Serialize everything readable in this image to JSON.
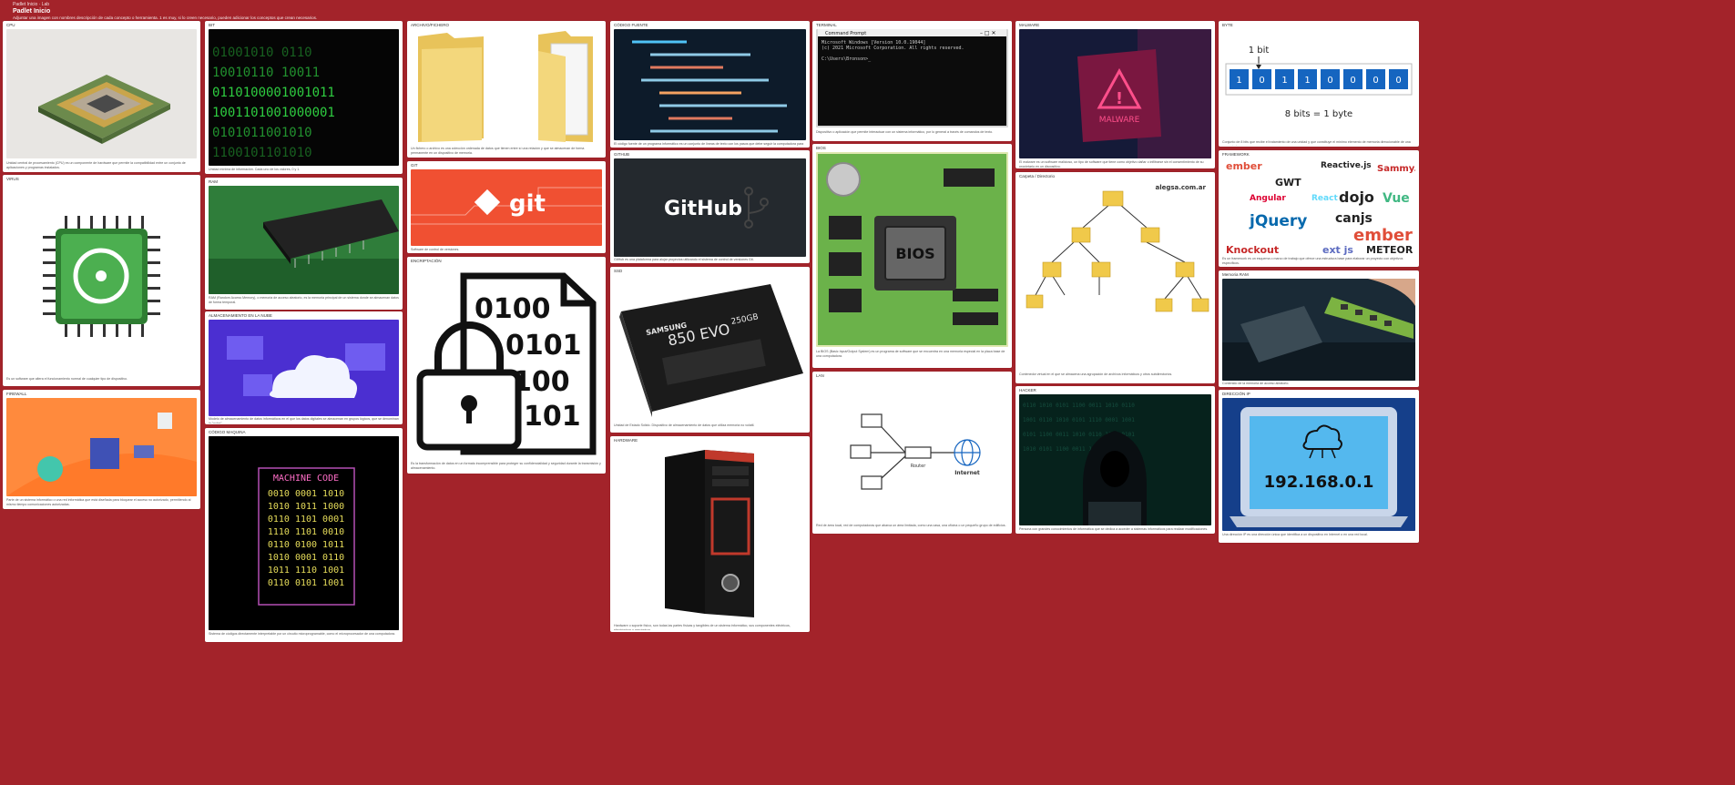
{
  "header": {
    "breadcrumb": "Padlet Inicio · Lab",
    "title": "Padlet Inicio",
    "description": "Adjuntar una imagen con nombres descripción de cada concepto o herramienta. 1 es muy, si lo creen necesario, pueden adicionar los conceptos que crean necesarios."
  },
  "cards": [
    {
      "title": "CPU",
      "caption": "Unidad central de procesamiento (CPU) es un componente de hardware que permite la compatibilidad entre un conjunto de aplicaciones y programas instalados.",
      "icon": "cpu-chip-icon"
    },
    {
      "title": "VIRUS",
      "caption": "Es un software que altera el funcionamiento normal de cualquier tipo de dispositivo.",
      "icon": "biohazard-chip-icon"
    },
    {
      "title": "FIREWALL",
      "caption": "Parte de un sistema informático o una red informática que está diseñada para bloquear el acceso no autorizado, permitiendo al mismo tiempo comunicaciones autorizadas.",
      "icon": "firewall-icon"
    },
    {
      "title": "BIT",
      "caption": "Unidad mínima de información. Cada uno de los valores, 0 y 1.",
      "icon": "binary-digits-icon"
    },
    {
      "title": "RAM",
      "caption": "RAM (Random Access Memory), o memoria de acceso aleatorio, es la memoria principal de un sistema donde se almacenan datos de forma temporal.",
      "icon": "ram-chip-icon"
    },
    {
      "title": "ALMACENAMIENTO EN LA NUBE",
      "caption": "Modelo de almacenamiento de datos informáticos en el que los datos digitales se almacenan en grupos lógicos, que se denominan la \"nube\".",
      "icon": "cloud-storage-icon"
    },
    {
      "title": "CÓDIGO MAQUINA",
      "caption": "Sistema de códigos directamente interpretable por un circuito microprogramable, como el microprocesador de una computadora.",
      "icon": "machine-code-icon",
      "code": "MACHINE CODE",
      "lines": [
        "0010 0001 1010",
        "1010 1011 1000",
        "0110 1101 0001",
        "1110 1101 0010",
        "0110 0100 1011",
        "1010 0001 0110",
        "1011 1110 1001",
        "0110 0101 1001"
      ]
    },
    {
      "title": "Archivo/Fichero",
      "caption": "Un fichero o archivo es una colección ordenada de datos que tienen entre sí una relación y que se almacenan de forma permanente en un dispositivo de memoria.",
      "icon": "folder-icon"
    },
    {
      "title": "GIT",
      "caption": "Software de control de versiones.",
      "icon": "git-logo-icon",
      "logo": "git"
    },
    {
      "title": "ENCRIPTACIÓN",
      "caption": "Es la transformación de datos en un formato incomprensible para proteger su confidencialidad y seguridad durante la transmisión y almacenamiento.",
      "icon": "encryption-lock-icon",
      "digits": [
        "0100",
        "0101",
        "100",
        "101"
      ]
    },
    {
      "title": "CÓDIGO FUENTE",
      "caption": "El código fuente de un programa informático es un conjunto de líneas de texto con los pasos que debe seguir la computadora para ejecutar un programa.",
      "icon": "source-code-icon"
    },
    {
      "title": "GITHUB",
      "caption": "GitHub es una plataforma para alojar proyectos utilizando el sistema de control de versiones Git.",
      "icon": "github-logo-icon",
      "logo": "GitHub"
    },
    {
      "title": "SSD",
      "caption": "Unidad de Estado Sólido. Dispositivo de almacenamiento de datos que utiliza memoria no volátil.",
      "icon": "ssd-icon",
      "brand": "SAMSUNG",
      "model": "850 EVO",
      "size": "250GB"
    },
    {
      "title": "HARDWARE",
      "caption": "Hardware o soporte físico, son todas las partes físicas y tangibles de un sistema informático, sus componentes eléctricos, electrónicos y mecánicos.",
      "icon": "pc-tower-icon"
    },
    {
      "title": "TERMINAL",
      "caption": "Dispositivo o aplicación que permite interactuar con un sistema informático, por lo general a través de comandos de texto.",
      "icon": "terminal-icon",
      "window": "Command Prompt",
      "lines": [
        "Microsoft Windows [Version 10.0.19044]",
        "(c) 2021 Microsoft Corporation. All rights reserved.",
        "",
        "C:\\Users\\Bronson>_"
      ]
    },
    {
      "title": "BIOS",
      "caption": "La BIOS (Basic Input/Output System) es un programa de software que se encuentra en una memoria especial en la placa base de una computadora.",
      "icon": "bios-board-icon",
      "label": "BIOS"
    },
    {
      "title": "LAN",
      "caption": "Red de área local, red de computadoras que abarca un área limitada, como una casa, una oficina o un pequeño grupo de edificios.",
      "icon": "lan-diagram-icon",
      "router": "Router",
      "internet": "Internet"
    },
    {
      "title": "MALWARE",
      "caption": "El malware es un software malicioso, un tipo de software que tiene como objetivo dañar o infiltrarse sin el consentimiento de su propietario en un dispositivo.",
      "icon": "malware-warning-icon",
      "label": "MALWARE"
    },
    {
      "title": "Carpeta / Directorio",
      "caption": "Contenedor virtual en el que se almacena una agrupación de archivos informáticos y otros subdirectorios.",
      "icon": "directory-tree-icon",
      "site": "alegsa.com.ar"
    },
    {
      "title": "HACKER",
      "caption": "Persona con grandes conocimientos de informática que se dedica a acceder a sistemas informáticos para realizar modificaciones.",
      "icon": "hacker-icon"
    },
    {
      "title": "BYTE",
      "caption": "Conjunto de 8 bits que recibe el tratamiento de una unidad y que constituye el mínimo elemento de memoria direccionable de una computadora.",
      "icon": "byte-diagram-icon",
      "bit_label": "1 bit",
      "bits": [
        "1",
        "0",
        "1",
        "1",
        "0",
        "0",
        "0",
        "0"
      ],
      "byte_label": "8 bits = 1 byte"
    },
    {
      "title": "FRAMEWORK",
      "caption": "Es un framework es un esquema o marco de trabajo que ofrece una estructura base para elaborar un proyecto con objetivos específicos.",
      "icon": "framework-logos-icon",
      "logos": [
        "ember",
        "GWT",
        "Angular",
        "React",
        "dojo",
        "Vue",
        "jQuery",
        "canjs",
        "ember",
        "Knockout",
        "ext js",
        "METEOR",
        "Reactive.js",
        "Sammy.js"
      ]
    },
    {
      "title": "Memoria RAM",
      "caption": "Contenido de la memoria de acceso aleatorio.",
      "icon": "ram-stick-icon"
    },
    {
      "title": "DIRECCIÓN IP",
      "caption": "Una dirección IP es una dirección única que identifica a un dispositivo en Internet o en una red local.",
      "icon": "ip-address-icon",
      "ip": "192.168.0.1"
    }
  ]
}
